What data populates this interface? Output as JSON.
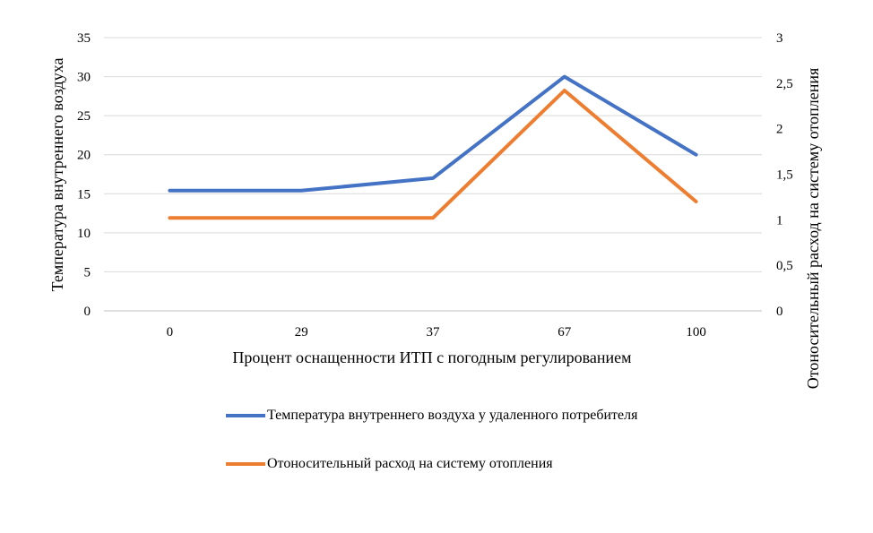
{
  "chart_data": {
    "type": "line",
    "categories": [
      "0",
      "29",
      "37",
      "67",
      "100"
    ],
    "xlabel": "Процент оснащенности ИТП с погодным регулированием",
    "ylabel_left": "Температура  внутреннего воздуха",
    "ylabel_right": "Отоносительный расход на систему отопления",
    "y_left": {
      "min": 0,
      "max": 35,
      "ticks": [
        "0",
        "5",
        "10",
        "15",
        "20",
        "25",
        "30",
        "35"
      ]
    },
    "y_right": {
      "min": 0,
      "max": 3,
      "ticks": [
        "0",
        "0,5",
        "1",
        "1,5",
        "2",
        "2,5",
        "3"
      ]
    },
    "grid": true,
    "legend_position": "bottom",
    "series": [
      {
        "name": "Температура внутреннего воздуха у удаленного потребителя",
        "axis": "left",
        "color": "#4472C4",
        "values": [
          15.4,
          15.4,
          17,
          30,
          20
        ]
      },
      {
        "name": "Отоносительный расход на систему отопления",
        "axis": "right",
        "color": "#ED7D31",
        "values": [
          1.02,
          1.02,
          1.02,
          2.42,
          1.2
        ]
      }
    ]
  }
}
